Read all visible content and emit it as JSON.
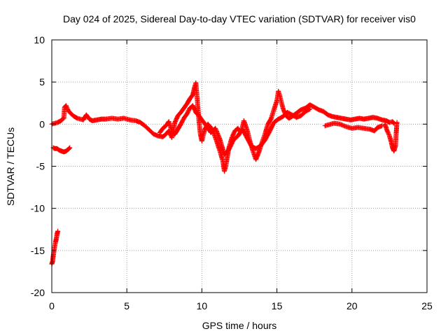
{
  "chart_data": {
    "type": "scatter",
    "title": "Day 024 of 2025, Sidereal Day-to-day VTEC variation (SDTVAR) for receiver vis0",
    "xlabel": "GPS time / hours",
    "ylabel": "SDTVAR / TECUs",
    "xlim": [
      0,
      25
    ],
    "ylim": [
      -20,
      10
    ],
    "xticks": [
      0,
      5,
      10,
      15,
      20,
      25
    ],
    "yticks": [
      -20,
      -15,
      -10,
      -5,
      0,
      5,
      10
    ],
    "xtick_labels": [
      "0",
      "5",
      "10",
      "15",
      "20",
      "25"
    ],
    "ytick_labels": [
      "-20",
      "-15",
      "-10",
      "-5",
      "0",
      "5",
      "10"
    ],
    "grid": true,
    "marker": "+",
    "series": [
      {
        "name": "SDTVAR",
        "color": "#ff0000",
        "segments": [
          [
            [
              0.0,
              -16.6
            ],
            [
              0.05,
              -16.3
            ],
            [
              0.1,
              -15.6
            ],
            [
              0.15,
              -15.0
            ],
            [
              0.2,
              -14.5
            ],
            [
              0.25,
              -14.0
            ],
            [
              0.3,
              -13.6
            ],
            [
              0.35,
              -13.1
            ],
            [
              0.4,
              -12.7
            ]
          ],
          [
            [
              0.1,
              -2.8
            ],
            [
              0.2,
              -2.9
            ],
            [
              0.35,
              -2.9
            ],
            [
              0.5,
              -3.1
            ],
            [
              0.65,
              -3.2
            ],
            [
              0.8,
              -3.3
            ],
            [
              0.95,
              -3.2
            ],
            [
              1.1,
              -3.0
            ],
            [
              1.2,
              -2.8
            ]
          ],
          [
            [
              0.0,
              0.0
            ],
            [
              0.2,
              0.1
            ],
            [
              0.4,
              0.2
            ],
            [
              0.6,
              0.4
            ],
            [
              0.8,
              0.7
            ],
            [
              0.85,
              2.0
            ],
            [
              0.95,
              2.2
            ],
            [
              1.1,
              1.6
            ],
            [
              1.3,
              1.2
            ],
            [
              1.5,
              0.9
            ],
            [
              1.7,
              0.7
            ],
            [
              1.9,
              0.6
            ],
            [
              2.1,
              0.5
            ],
            [
              2.3,
              1.1
            ],
            [
              2.5,
              0.6
            ],
            [
              2.7,
              0.4
            ],
            [
              3.0,
              0.5
            ],
            [
              3.3,
              0.6
            ],
            [
              3.6,
              0.6
            ],
            [
              4.0,
              0.7
            ],
            [
              4.4,
              0.6
            ],
            [
              4.8,
              0.7
            ],
            [
              5.2,
              0.5
            ],
            [
              5.6,
              0.4
            ],
            [
              5.9,
              0.2
            ],
            [
              6.2,
              -0.2
            ],
            [
              6.5,
              -0.7
            ],
            [
              6.8,
              -1.2
            ],
            [
              7.1,
              -1.4
            ],
            [
              7.4,
              -1.5
            ],
            [
              7.6,
              -1.2
            ],
            [
              7.8,
              -0.8
            ],
            [
              8.0,
              -1.6
            ],
            [
              8.2,
              0.2
            ],
            [
              8.4,
              1.0
            ],
            [
              8.6,
              1.4
            ],
            [
              8.8,
              1.9
            ],
            [
              9.0,
              2.4
            ],
            [
              9.2,
              3.0
            ],
            [
              9.4,
              3.5
            ],
            [
              9.5,
              4.3
            ],
            [
              9.6,
              4.9
            ],
            [
              9.7,
              2.8
            ],
            [
              9.8,
              0.5
            ],
            [
              9.9,
              -1.2
            ],
            [
              10.0,
              -2.0
            ],
            [
              10.2,
              -0.6
            ],
            [
              10.4,
              0.0
            ],
            [
              10.6,
              -0.4
            ],
            [
              10.8,
              -1.1
            ],
            [
              11.0,
              -2.1
            ],
            [
              11.2,
              -3.2
            ],
            [
              11.4,
              -4.4
            ],
            [
              11.5,
              -5.6
            ],
            [
              11.6,
              -4.9
            ],
            [
              11.8,
              -2.8
            ],
            [
              12.0,
              -1.6
            ],
            [
              12.2,
              -0.8
            ],
            [
              12.4,
              -0.5
            ],
            [
              12.6,
              -1.0
            ],
            [
              12.8,
              0.4
            ],
            [
              13.0,
              -0.6
            ],
            [
              13.2,
              -2.0
            ],
            [
              13.4,
              -3.2
            ],
            [
              13.6,
              -4.2
            ],
            [
              13.8,
              -3.3
            ],
            [
              14.0,
              -2.2
            ],
            [
              14.2,
              -1.2
            ],
            [
              14.4,
              0.0
            ],
            [
              14.6,
              0.6
            ],
            [
              14.8,
              1.7
            ],
            [
              15.0,
              2.8
            ],
            [
              15.1,
              3.9
            ],
            [
              15.2,
              3.3
            ],
            [
              15.4,
              1.9
            ],
            [
              15.6,
              1.0
            ],
            [
              15.8,
              0.7
            ],
            [
              16.0,
              0.9
            ],
            [
              16.3,
              1.3
            ],
            [
              16.6,
              1.7
            ],
            [
              16.9,
              1.9
            ],
            [
              17.2,
              2.3
            ],
            [
              17.5,
              2.0
            ],
            [
              17.8,
              1.7
            ],
            [
              18.1,
              1.5
            ],
            [
              18.4,
              1.1
            ],
            [
              18.7,
              0.9
            ],
            [
              19.0,
              0.8
            ],
            [
              19.3,
              0.7
            ],
            [
              19.6,
              0.6
            ],
            [
              19.9,
              0.5
            ],
            [
              20.2,
              0.6
            ],
            [
              20.5,
              0.7
            ],
            [
              20.8,
              0.6
            ],
            [
              21.1,
              0.7
            ],
            [
              21.4,
              0.8
            ],
            [
              21.7,
              0.7
            ],
            [
              22.0,
              0.5
            ],
            [
              22.3,
              0.4
            ],
            [
              22.5,
              0.2
            ],
            [
              22.7,
              0.3
            ],
            [
              22.8,
              0.1
            ]
          ],
          [
            [
              7.2,
              -1.0
            ],
            [
              7.4,
              -0.5
            ],
            [
              7.6,
              -0.2
            ],
            [
              7.8,
              0.3
            ],
            [
              8.0,
              -0.8
            ],
            [
              8.2,
              -1.2
            ],
            [
              8.4,
              -0.6
            ],
            [
              8.6,
              0.0
            ],
            [
              8.8,
              0.7
            ],
            [
              9.0,
              1.2
            ],
            [
              9.2,
              1.9
            ],
            [
              9.4,
              2.2
            ],
            [
              9.6,
              1.4
            ],
            [
              9.8,
              1.0
            ],
            [
              10.0,
              0.5
            ],
            [
              10.3,
              -0.2
            ],
            [
              10.6,
              -1.0
            ],
            [
              10.9,
              -0.5
            ],
            [
              11.2,
              -1.8
            ],
            [
              11.5,
              -3.6
            ],
            [
              11.8,
              -3.0
            ],
            [
              12.1,
              -1.9
            ],
            [
              12.4,
              -1.4
            ],
            [
              12.7,
              -0.6
            ],
            [
              13.0,
              -1.6
            ],
            [
              13.3,
              -2.6
            ],
            [
              13.6,
              -2.9
            ],
            [
              13.9,
              -2.6
            ],
            [
              14.2,
              -1.9
            ],
            [
              14.5,
              -0.9
            ],
            [
              14.8,
              0.2
            ],
            [
              15.1,
              0.6
            ],
            [
              15.4,
              0.9
            ],
            [
              15.7,
              1.4
            ],
            [
              16.0,
              1.1
            ],
            [
              16.3,
              0.8
            ],
            [
              16.6,
              1.0
            ],
            [
              16.9,
              1.5
            ],
            [
              17.2,
              1.8
            ]
          ],
          [
            [
              22.2,
              0.0
            ],
            [
              22.35,
              -0.8
            ],
            [
              22.5,
              -1.4
            ],
            [
              22.6,
              -2.0
            ],
            [
              22.7,
              -2.8
            ],
            [
              22.8,
              -3.2
            ],
            [
              22.9,
              -2.6
            ],
            [
              22.95,
              -1.0
            ],
            [
              23.0,
              0.2
            ]
          ],
          [
            [
              18.2,
              -0.2
            ],
            [
              18.4,
              -0.1
            ],
            [
              18.8,
              0.1
            ],
            [
              19.2,
              0.0
            ],
            [
              19.6,
              -0.3
            ],
            [
              20.0,
              -0.5
            ],
            [
              20.4,
              -0.4
            ],
            [
              20.8,
              -0.5
            ],
            [
              21.2,
              -0.6
            ],
            [
              21.5,
              -0.8
            ],
            [
              21.7,
              -0.4
            ],
            [
              22.0,
              -0.2
            ]
          ]
        ]
      }
    ]
  }
}
